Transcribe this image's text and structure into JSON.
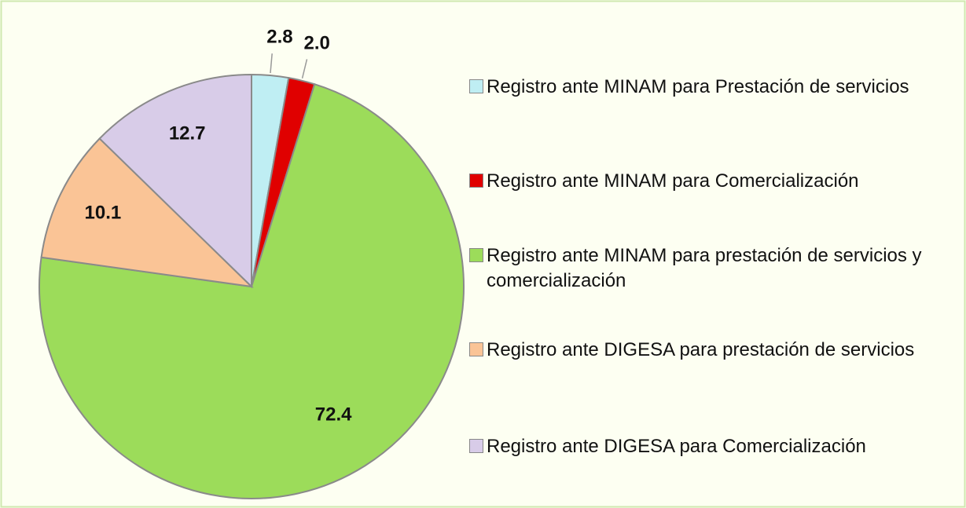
{
  "chart_data": {
    "type": "pie",
    "categories": [
      "Registro ante MINAM para Prestación de servicios",
      "Registro ante MINAM para Comercialización",
      "Registro ante MINAM para prestación de servicios y comercialización",
      "Registro ante DIGESA para prestación de servicios",
      "Registro ante DIGESA para Comercialización"
    ],
    "values": [
      2.8,
      2.0,
      72.4,
      10.1,
      12.7
    ],
    "value_labels": [
      "2.8",
      "2.0",
      "72.4",
      "10.1",
      "12.7"
    ],
    "colors": [
      "#bfeef3",
      "#e00000",
      "#9cdc5a",
      "#fac496",
      "#d8cce8"
    ],
    "legend": "right"
  }
}
